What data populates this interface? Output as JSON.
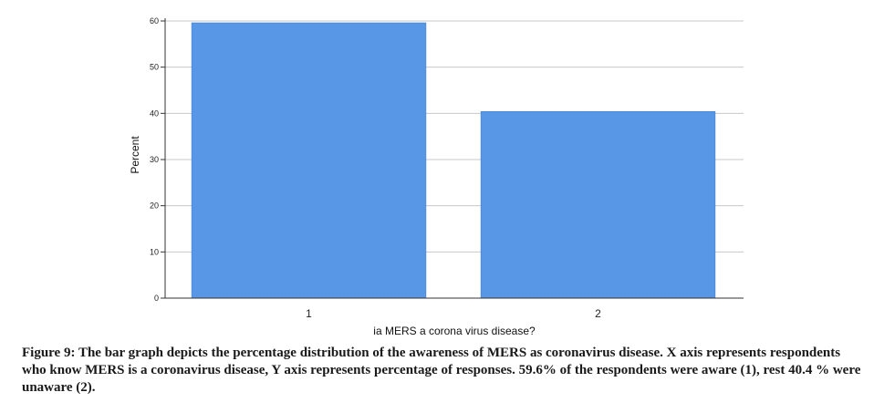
{
  "chart_data": {
    "type": "bar",
    "categories": [
      "1",
      "2"
    ],
    "values": [
      59.6,
      40.4
    ],
    "xlabel": "ia MERS a corona virus disease?",
    "ylabel": "Percent",
    "ylim": [
      0,
      60
    ],
    "yticks": [
      0,
      10,
      20,
      30,
      40,
      50,
      60
    ],
    "grid": true,
    "bar_color": "#5797e6"
  },
  "caption": "Figure 9: The bar graph depicts the percentage distribution of the awareness of MERS as coronavirus disease. X axis represents respondents who know MERS is a coronavirus disease, Y axis represents percentage of responses. 59.6% of the respondents were aware (1), rest 40.4 % were unaware (2)."
}
